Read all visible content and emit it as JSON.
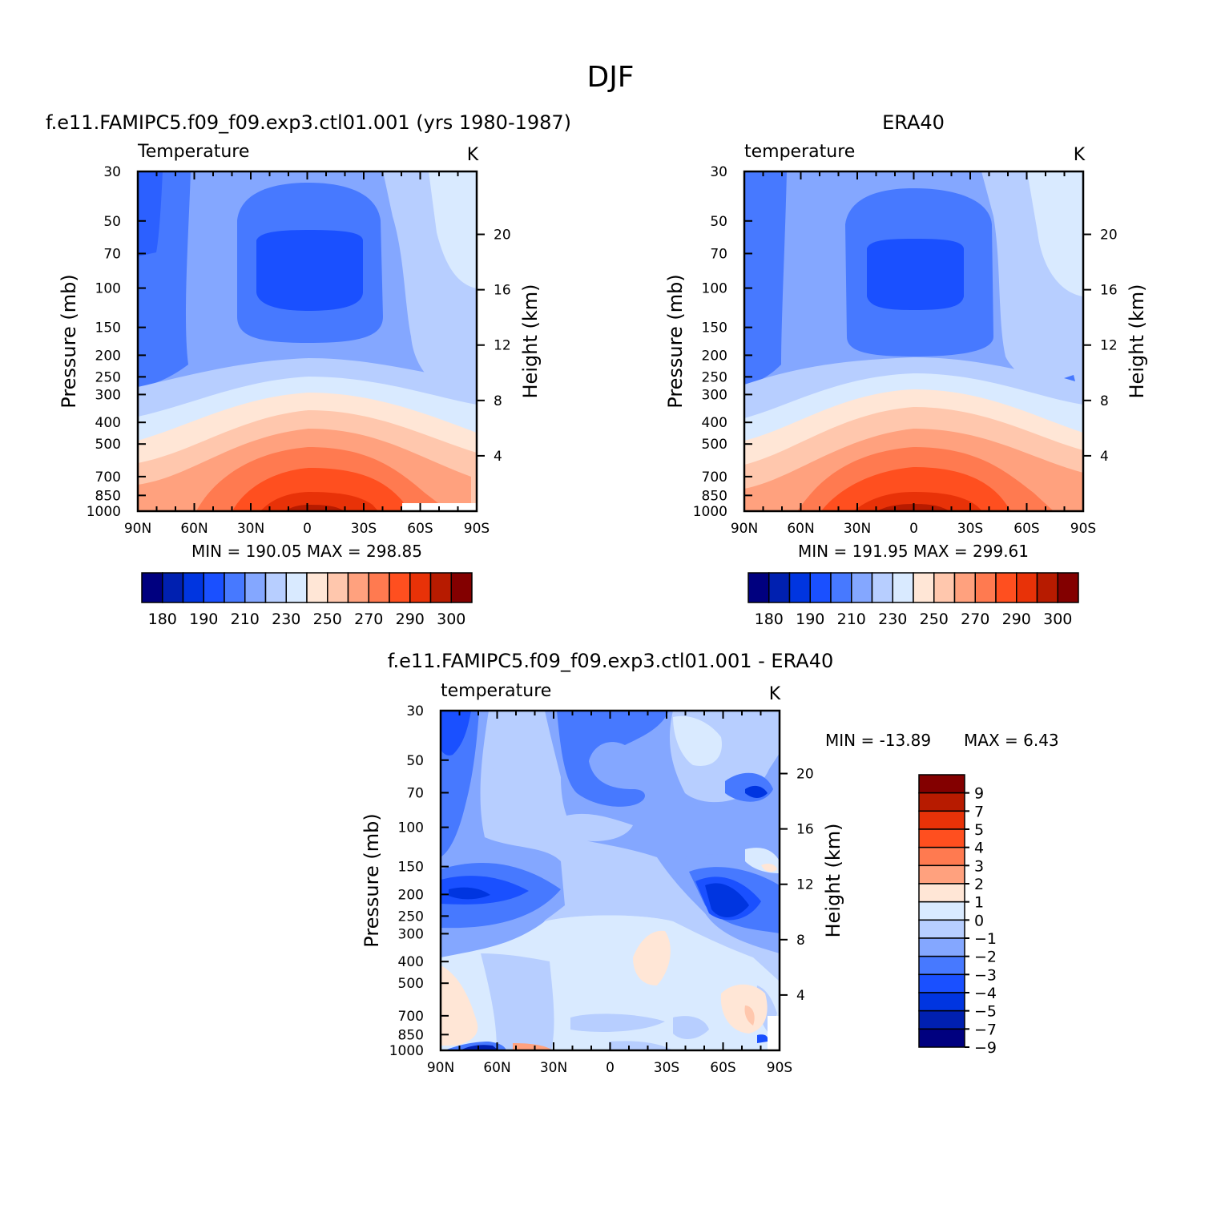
{
  "suptitle": "DJF",
  "colors": {
    "abs": [
      "#00007f",
      "#0020b0",
      "#0035e0",
      "#1a50ff",
      "#4779ff",
      "#84a7ff",
      "#b7ceff",
      "#d9eaff",
      "#ffe6d6",
      "#ffc7ad",
      "#ffa17e",
      "#ff7a50",
      "#ff4f1f",
      "#e83208",
      "#b71b00",
      "#830000"
    ],
    "diff": [
      "#830000",
      "#b71b00",
      "#e83208",
      "#ff4f1f",
      "#ff7a50",
      "#ffa17e",
      "#ffe6d6",
      "#d9eaff",
      "#b7ceff",
      "#84a7ff",
      "#4779ff",
      "#1a50ff",
      "#0035e0",
      "#0020b0",
      "#00007f"
    ]
  },
  "chart_data": [
    {
      "type": "heatmap",
      "title": "f.e11.FAMIPC5.f09_f09.exp3.ctl01.001 (yrs 1980-1987)",
      "left_label": "Temperature",
      "units": "K",
      "ylabel": "Pressure (mb)",
      "right_label": "Height (km)",
      "x_ticks": [
        "90N",
        "60N",
        "30N",
        "0",
        "30S",
        "60S",
        "90S"
      ],
      "y_ticks": [
        "30",
        "50",
        "70",
        "100",
        "150",
        "200",
        "250",
        "300",
        "400",
        "500",
        "700",
        "850",
        "1000"
      ],
      "height_ticks": [
        "20",
        "16",
        "12",
        "8",
        "4"
      ],
      "min_max": "MIN = 190.05   MAX = 298.85",
      "colorbar_labels": [
        "180",
        "190",
        "210",
        "230",
        "250",
        "270",
        "290",
        "300"
      ]
    },
    {
      "type": "heatmap",
      "title": "ERA40",
      "left_label": "temperature",
      "units": "K",
      "ylabel": "Pressure (mb)",
      "right_label": "Height (km)",
      "x_ticks": [
        "90N",
        "60N",
        "30N",
        "0",
        "30S",
        "60S",
        "90S"
      ],
      "y_ticks": [
        "30",
        "50",
        "70",
        "100",
        "150",
        "200",
        "250",
        "300",
        "400",
        "500",
        "700",
        "850",
        "1000"
      ],
      "height_ticks": [
        "20",
        "16",
        "12",
        "8",
        "4"
      ],
      "min_max": "MIN = 191.95   MAX = 299.61",
      "colorbar_labels": [
        "180",
        "190",
        "210",
        "230",
        "250",
        "270",
        "290",
        "300"
      ]
    },
    {
      "type": "heatmap",
      "title": "f.e11.FAMIPC5.f09_f09.exp3.ctl01.001 - ERA40",
      "left_label": "temperature",
      "units": "K",
      "ylabel": "Pressure (mb)",
      "right_label": "Height (km)",
      "x_ticks": [
        "90N",
        "60N",
        "30N",
        "0",
        "30S",
        "60S",
        "90S"
      ],
      "y_ticks": [
        "30",
        "50",
        "70",
        "100",
        "150",
        "200",
        "250",
        "300",
        "400",
        "500",
        "700",
        "850",
        "1000"
      ],
      "height_ticks": [
        "20",
        "16",
        "12",
        "8",
        "4"
      ],
      "min_label": "MIN = -13.89",
      "max_label": "MAX =    6.43",
      "colorbar_labels": [
        "9",
        "7",
        "5",
        "4",
        "3",
        "2",
        "1",
        "0",
        "-1",
        "-2",
        "-3",
        "-4",
        "-5",
        "-7",
        "-9"
      ]
    }
  ]
}
